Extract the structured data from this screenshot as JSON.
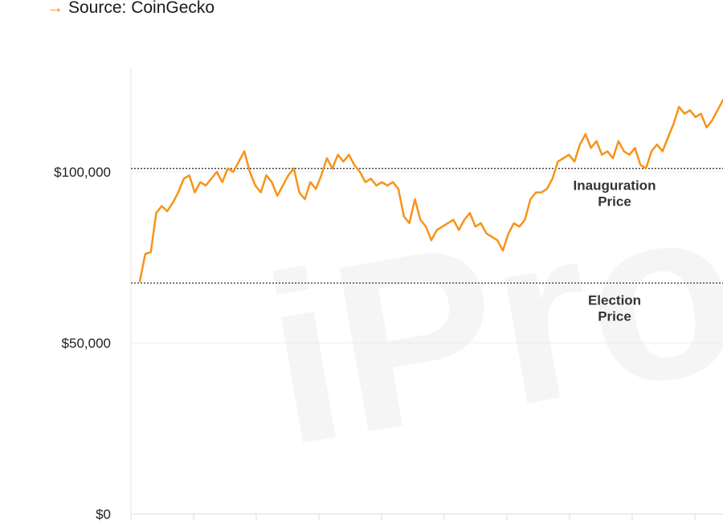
{
  "source": {
    "arrow": "→",
    "text": "Source: CoinGecko"
  },
  "watermark": "iProto",
  "chart_data": {
    "type": "line",
    "title": "",
    "xlabel": "",
    "ylabel": "",
    "ylim": [
      0,
      125000
    ],
    "y_ticks": [
      {
        "value": 0,
        "label": "$0"
      },
      {
        "value": 50000,
        "label": "$50,000"
      },
      {
        "value": 100000,
        "label": "$100,000"
      }
    ],
    "grid": true,
    "series": [
      {
        "color": "#f7931a",
        "values": [
          68000,
          76000,
          76500,
          88000,
          90000,
          88500,
          91000,
          94000,
          98000,
          99000,
          94000,
          97000,
          96000,
          98000,
          100000,
          97000,
          101000,
          100000,
          103000,
          106000,
          100000,
          96000,
          94000,
          99000,
          97000,
          93000,
          96000,
          99000,
          101000,
          94000,
          92000,
          97000,
          95000,
          99000,
          104000,
          101000,
          105000,
          103000,
          105000,
          102000,
          100000,
          97000,
          98000,
          96000,
          97000,
          96000,
          97000,
          95000,
          87000,
          85000,
          92000,
          86000,
          84000,
          80000,
          83000,
          84000,
          85000,
          86000,
          83000,
          86000,
          88000,
          84000,
          85000,
          82000,
          81000,
          80000,
          77000,
          82000,
          85000,
          84000,
          86000,
          92000,
          94000,
          94000,
          95000,
          98000,
          103000,
          104000,
          105000,
          103000,
          108000,
          111000,
          107000,
          109000,
          105000,
          106000,
          104000,
          109000,
          106000,
          105000,
          107000,
          102000,
          101000,
          106000,
          108000,
          106000,
          110000,
          114000,
          119000,
          117000,
          118000,
          116000,
          117000,
          113000,
          115000,
          118000,
          121000
        ]
      }
    ],
    "reference_lines": [
      {
        "value": 101000,
        "label": [
          "Inauguration",
          "Price"
        ]
      },
      {
        "value": 67500,
        "label": [
          "Election",
          "Price"
        ]
      }
    ]
  }
}
